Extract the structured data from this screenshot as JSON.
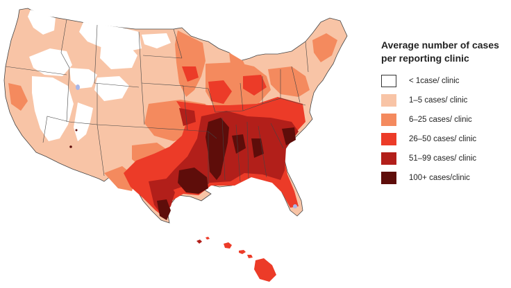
{
  "legend": {
    "title_line1": "Average number of cases",
    "title_line2": "per reporting clinic",
    "items": [
      {
        "label": "< 1case/ clinic",
        "color": "#ffffff",
        "border": "#333333"
      },
      {
        "label": "1–5 cases/ clinic",
        "color": "#f8c4a6",
        "border": "none"
      },
      {
        "label": "6–25  cases/ clinic",
        "color": "#f48a5e",
        "border": "none"
      },
      {
        "label": "26–50  cases/ clinic",
        "color": "#ec3b28",
        "border": "none"
      },
      {
        "label": "51–99 cases/ clinic",
        "color": "#b21f1a",
        "border": "none"
      },
      {
        "label": "100+ cases/clinic",
        "color": "#5e0d0a",
        "border": "none"
      }
    ]
  },
  "map": {
    "colors": {
      "none": "#ffffff",
      "low": "#f8c4a6",
      "mid": "#f48a5e",
      "high": "#ec3b28",
      "vhigh": "#b21f1a",
      "max": "#5e0d0a",
      "water": "#a9b6e8",
      "border": "#444444"
    }
  }
}
